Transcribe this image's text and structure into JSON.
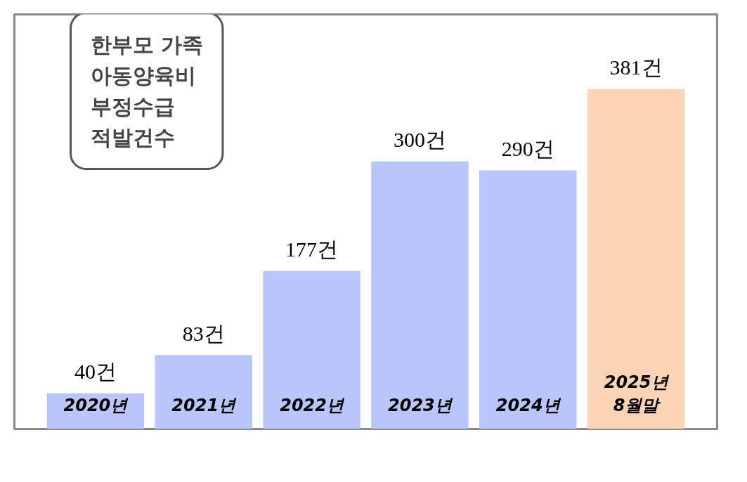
{
  "chart_data": {
    "type": "bar",
    "title": "한부모 가족\n아동양육비\n부정수급\n적발건수",
    "categories": [
      "2020년",
      "2021년",
      "2022년",
      "2023년",
      "2024년",
      "2025년\n8월말"
    ],
    "values": [
      40,
      83,
      177,
      300,
      290,
      381
    ],
    "value_labels": [
      "40건",
      "83건",
      "177건",
      "300건",
      "290건",
      "381건"
    ],
    "colors": [
      "#b9c5fb",
      "#b9c5fb",
      "#b9c5fb",
      "#b9c5fb",
      "#b9c5fb",
      "#fad4b4"
    ]
  }
}
